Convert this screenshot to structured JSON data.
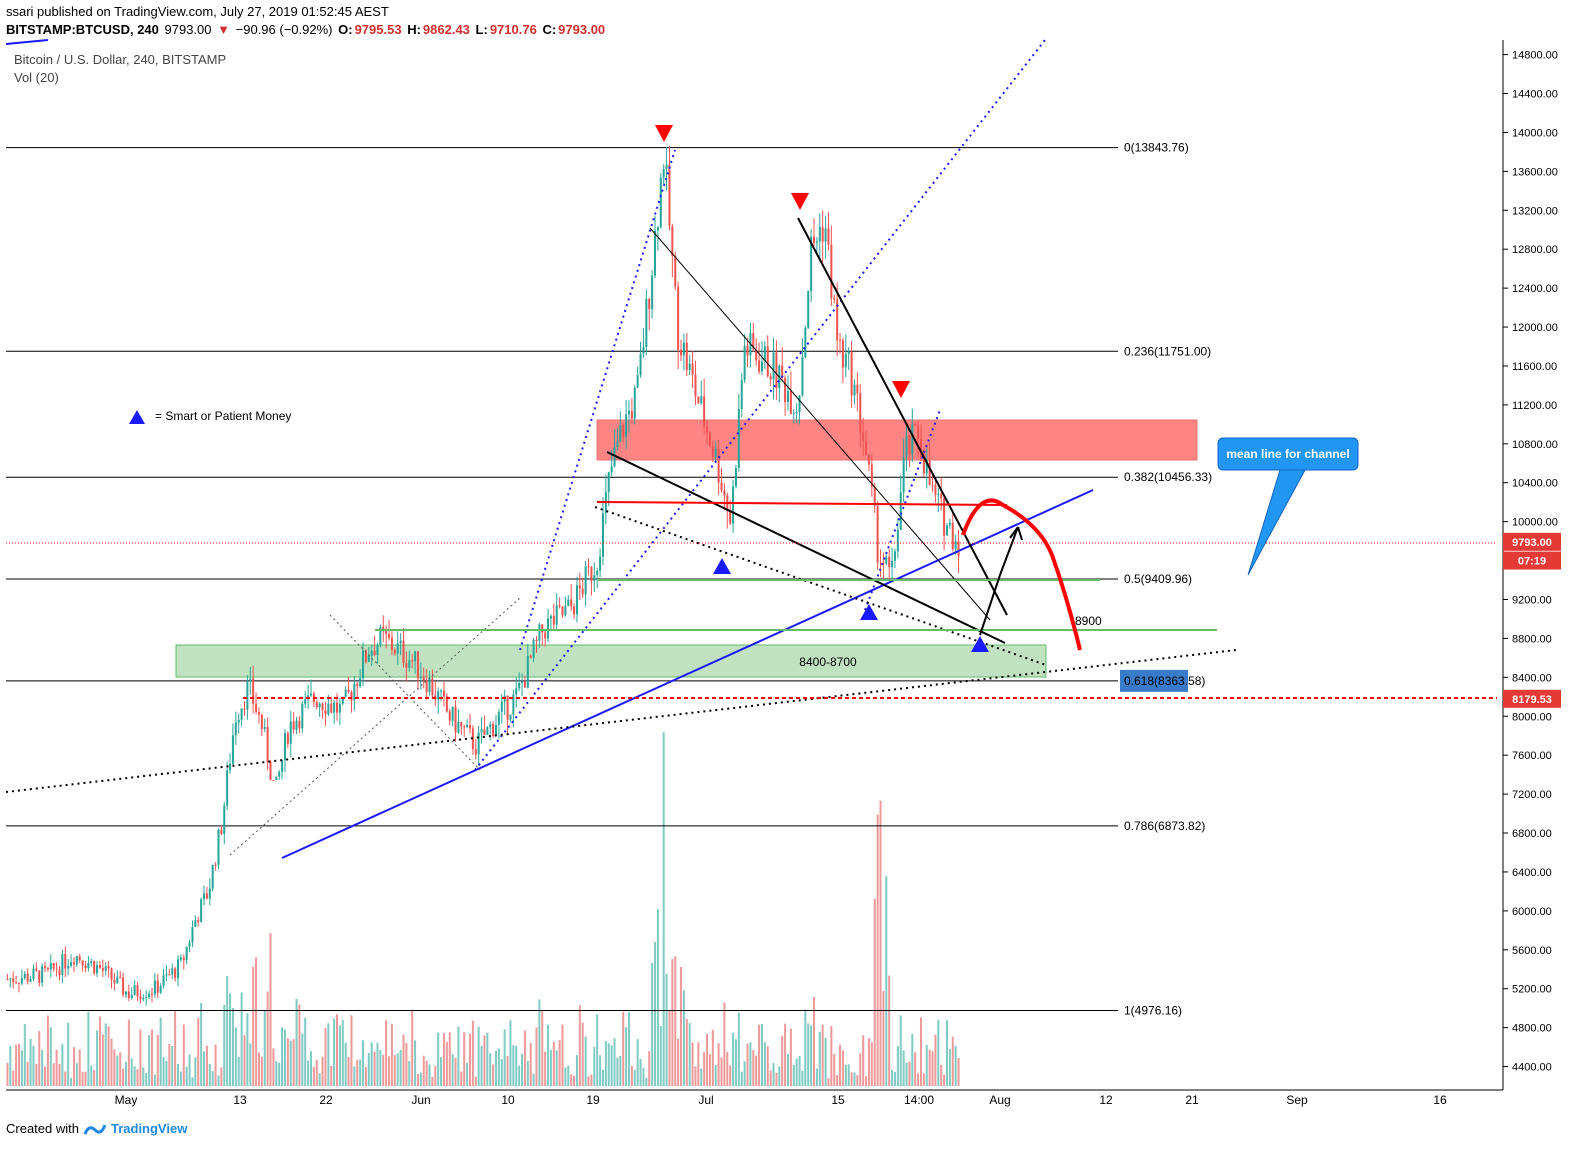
{
  "header": {
    "published": "ssari published on TradingView.com, July 27, 2019 01:52:45 AEST",
    "symbol": "BITSTAMP:BTCUSD, 240",
    "last": "9793.00",
    "change": "−90.96 (−0.92%)",
    "o_label": "O:",
    "o": "9795.53",
    "h_label": "H:",
    "h": "9862.43",
    "l_label": "L:",
    "l": "9710.76",
    "c_label": "C:",
    "c": "9793.00"
  },
  "instrument_title": "Bitcoin / U.S. Dollar, 240, BITSTAMP",
  "volume_label": "Vol (20)",
  "legend_note": "= Smart or Patient Money",
  "callout_text": "mean line for channel",
  "zone_label": "8400-8700",
  "level_8900": "8900",
  "footer": {
    "created_with": "Created with",
    "brand": "TradingView"
  },
  "colors": {
    "up": "#26a69a",
    "down": "#ef5350",
    "vol_up": "#80cbc4",
    "vol_down": "#ef9a9a",
    "blue": "#1a1aff",
    "red": "#ff0000",
    "green_zone": "#a5d6a7",
    "red_zone": "#ff6f6f",
    "callout": "#2196f3",
    "price_tag": "#e53935"
  },
  "chart_data": {
    "type": "candlestick",
    "title": "Bitcoin / U.S. Dollar, 240, BITSTAMP",
    "ylim": [
      4200,
      14950
    ],
    "y_ticks": [
      "14800.00",
      "14400.00",
      "14000.00",
      "13600.00",
      "13200.00",
      "12800.00",
      "12400.00",
      "12000.00",
      "11600.00",
      "11200.00",
      "10800.00",
      "10400.00",
      "10000.00",
      "9600.00",
      "9200.00",
      "8800.00",
      "8400.00",
      "8000.00",
      "7600.00",
      "7200.00",
      "6800.00",
      "6400.00",
      "6000.00",
      "5600.00",
      "5200.00",
      "4800.00",
      "4400.00"
    ],
    "x_ticks": [
      "May",
      "13",
      "22",
      "Jun",
      "10",
      "19",
      "Jul",
      "15",
      "14:00",
      "Aug",
      "12",
      "21",
      "Sep",
      "16"
    ],
    "price_tags": [
      {
        "label": "9793.00",
        "value": 9793.0
      },
      {
        "label": "07:19",
        "value": 9600
      },
      {
        "label": "8179.53",
        "value": 8179.53
      }
    ],
    "fib_levels": [
      {
        "label": "0(13843.76)",
        "value": 13843.76
      },
      {
        "label": "0.236(11751.00)",
        "value": 11751.0
      },
      {
        "label": "0.382(10456.33)",
        "value": 10456.33
      },
      {
        "label": "0.5(9409.96)",
        "value": 9409.96
      },
      {
        "label": "0.618(8363.58)",
        "value": 8363.58
      },
      {
        "label": "0.786(6873.82)",
        "value": 6873.82
      },
      {
        "label": "1(4976.16)",
        "value": 4976.16
      }
    ],
    "price_path": [
      [
        0,
        5300
      ],
      [
        0.03,
        5350
      ],
      [
        0.05,
        5550
      ],
      [
        0.07,
        5400
      ],
      [
        0.09,
        5150
      ],
      [
        0.11,
        5200
      ],
      [
        0.13,
        5450
      ],
      [
        0.14,
        5900
      ],
      [
        0.15,
        6200
      ],
      [
        0.16,
        6900
      ],
      [
        0.17,
        8000
      ],
      [
        0.18,
        8300
      ],
      [
        0.19,
        7900
      ],
      [
        0.2,
        7200
      ],
      [
        0.21,
        7900
      ],
      [
        0.23,
        8200
      ],
      [
        0.25,
        8050
      ],
      [
        0.27,
        8700
      ],
      [
        0.28,
        8800
      ],
      [
        0.3,
        8600
      ],
      [
        0.31,
        8450
      ],
      [
        0.33,
        8000
      ],
      [
        0.35,
        7700
      ],
      [
        0.37,
        8050
      ],
      [
        0.38,
        8200
      ],
      [
        0.4,
        8900
      ],
      [
        0.42,
        9100
      ],
      [
        0.44,
        9600
      ],
      [
        0.45,
        10500
      ],
      [
        0.46,
        11000
      ],
      [
        0.47,
        11300
      ],
      [
        0.48,
        12500
      ],
      [
        0.49,
        13800
      ],
      [
        0.5,
        12000
      ],
      [
        0.51,
        11500
      ],
      [
        0.53,
        10600
      ],
      [
        0.54,
        10000
      ],
      [
        0.55,
        11800
      ],
      [
        0.57,
        11600
      ],
      [
        0.59,
        11200
      ],
      [
        0.6,
        12800
      ],
      [
        0.61,
        13100
      ],
      [
        0.62,
        11800
      ],
      [
        0.63,
        11500
      ],
      [
        0.64,
        10800
      ],
      [
        0.65,
        9700
      ],
      [
        0.66,
        9400
      ],
      [
        0.67,
        10700
      ],
      [
        0.68,
        10900
      ],
      [
        0.69,
        10300
      ],
      [
        0.7,
        10000
      ],
      [
        0.71,
        9793
      ]
    ]
  }
}
